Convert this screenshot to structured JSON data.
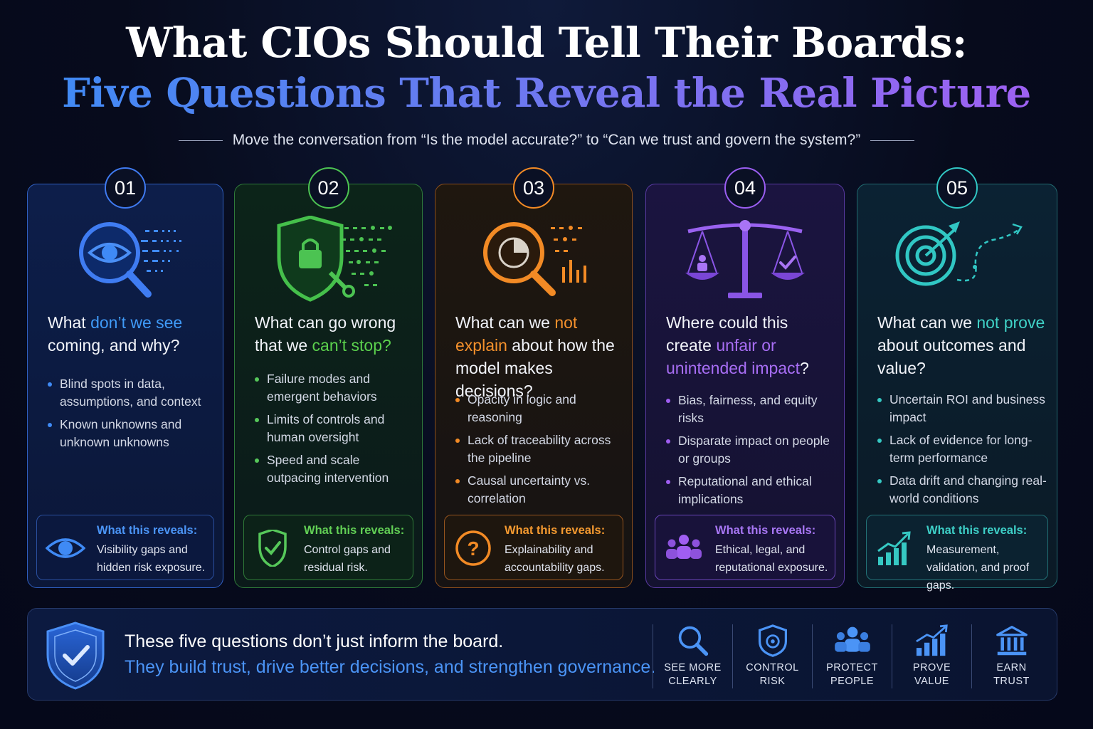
{
  "header": {
    "title_line1": "What CIOs Should Tell Their Boards:",
    "title_line2": "Five Questions That Reveal the Real Picture",
    "subtitle": "Move the conversation from “Is the model accurate?” to “Can we trust and govern the system?”"
  },
  "cards": [
    {
      "number": "01",
      "accent": "#3f8af5",
      "icon": "magnifier-eye-icon",
      "question": {
        "pre": "What ",
        "highlight": "don’t we see",
        "post": " coming, and why?"
      },
      "bullets": [
        "Blind spots in data, assumptions, and context",
        "Known unknowns and unknown unknowns"
      ],
      "reveal_icon": "eye-icon",
      "reveal_title": "What this reveals:",
      "reveal_text": "Visibility gaps and hidden risk exposure."
    },
    {
      "number": "02",
      "accent": "#56c85a",
      "icon": "shield-lock-icon",
      "question": {
        "pre": "What can go wrong that we ",
        "highlight": "can’t stop?",
        "post": ""
      },
      "bullets": [
        "Failure modes and emergent behaviors",
        "Limits of controls and human oversight",
        "Speed and scale outpacing intervention"
      ],
      "reveal_icon": "shield-check-icon",
      "reveal_title": "What this reveals:",
      "reveal_text": "Control gaps and residual risk."
    },
    {
      "number": "03",
      "accent": "#f28a25",
      "icon": "magnifier-chart-icon",
      "question": {
        "pre": "What can we ",
        "highlight": "not explain",
        "post": " about how the model makes decisions?"
      },
      "bullets": [
        "Opacity in logic and reasoning",
        "Lack of traceability across the pipeline",
        "Causal uncertainty vs. correlation"
      ],
      "reveal_icon": "question-circle-icon",
      "reveal_title": "What this reveals:",
      "reveal_text": "Explainability and accountability gaps."
    },
    {
      "number": "04",
      "accent": "#a05ef2",
      "icon": "scales-icon",
      "question": {
        "pre": "Where could this create ",
        "highlight": "unfair or unintended impact",
        "post": "?"
      },
      "bullets": [
        "Bias, fairness, and equity risks",
        "Disparate impact on people or groups",
        "Reputational and ethical implications"
      ],
      "reveal_icon": "people-group-icon",
      "reveal_title": "What this reveals:",
      "reveal_text": "Ethical, legal, and reputational exposure."
    },
    {
      "number": "05",
      "accent": "#36c9c3",
      "icon": "target-arrow-icon",
      "question": {
        "pre": "What can we ",
        "highlight": "not prove",
        "post": " about outcomes and value?"
      },
      "bullets": [
        "Uncertain ROI and business impact",
        "Lack of evidence for long-term performance",
        "Data drift and changing real-world conditions"
      ],
      "reveal_icon": "growth-chart-icon",
      "reveal_title": "What this reveals:",
      "reveal_text": "Measurement, validation, and proof gaps."
    }
  ],
  "footer": {
    "icon": "shield-check-icon",
    "line1": "These five questions don’t just inform the board.",
    "line2": "They build trust, drive better decisions, and strengthen governance.",
    "pillars": [
      {
        "icon": "magnifier-icon",
        "label": "SEE MORE\nCLEARLY"
      },
      {
        "icon": "shield-gear-icon",
        "label": "CONTROL\nRISK"
      },
      {
        "icon": "people-icon",
        "label": "PROTECT\nPEOPLE"
      },
      {
        "icon": "bar-growth-icon",
        "label": "PROVE\nVALUE"
      },
      {
        "icon": "bank-building-icon",
        "label": "EARN\nTRUST"
      }
    ]
  }
}
